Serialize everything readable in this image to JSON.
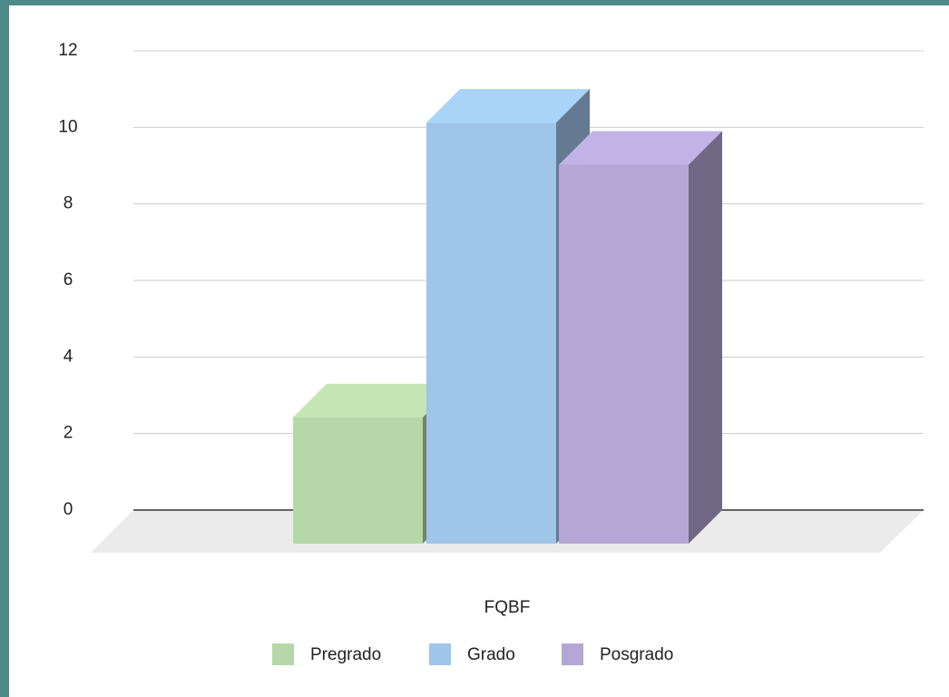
{
  "chart_data": {
    "type": "bar3d",
    "category": "FQBF",
    "series": [
      {
        "name": "Pregrado",
        "color": "#b6d7a8",
        "values": [
          3
        ]
      },
      {
        "name": "Grado",
        "color": "#9fc5e8",
        "values": [
          10
        ]
      },
      {
        "name": "Posgrado",
        "color": "#b4a7d6",
        "values": [
          9
        ]
      }
    ],
    "ylim": [
      0,
      12
    ],
    "yticks": [
      0,
      2,
      4,
      6,
      8,
      10,
      12
    ],
    "grid": true
  }
}
